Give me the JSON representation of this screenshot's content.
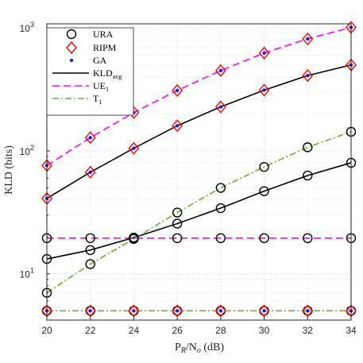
{
  "chart_data": {
    "type": "line",
    "xlabel": "P R/N o (dB)",
    "xlabel_parts": {
      "p": "P",
      "r": "R",
      "slash": "/N",
      "o": "o",
      "unit": " (dB)"
    },
    "ylabel": "KLD (bits)",
    "xlim": [
      20,
      34
    ],
    "ylim": [
      4.2,
      1080
    ],
    "yscale": "log",
    "grid": true,
    "legend_position": "top-left",
    "x_ticks": [
      "20",
      "22",
      "24",
      "26",
      "28",
      "30",
      "32",
      "34"
    ],
    "y_ticks": [
      {
        "base": "10",
        "exp": "1",
        "value": 10
      },
      {
        "base": "10",
        "exp": "2",
        "value": 100
      },
      {
        "base": "10",
        "exp": "3",
        "value": 1000
      }
    ],
    "x": [
      20,
      22,
      24,
      26,
      28,
      30,
      32,
      34
    ],
    "series": [
      {
        "name": "URA",
        "marker": "circle",
        "color": "#000000",
        "groups": [
          [
            13.2,
            15.6,
            19.7,
            25.6,
            34.2,
            47.0,
            63.0,
            80.0
          ],
          [
            7.0,
            12.0,
            19.2,
            31.5,
            50.0,
            74.0,
            107.0,
            143.0
          ],
          [
            19.5,
            19.5,
            19.5,
            19.5,
            19.5,
            19.5,
            19.5,
            19.5
          ],
          [
            5.0,
            5.0,
            5.0,
            5.0,
            5.0,
            5.0,
            5.0,
            5.0
          ]
        ]
      },
      {
        "name": "RIPM",
        "marker": "diamond",
        "color": "#ff0000",
        "groups": [
          [
            41.0,
            67.0,
            105.0,
            160.0,
            228.0,
            312.0,
            410.0,
            500.0
          ],
          [
            76.0,
            128.0,
            205.0,
            310.0,
            450.0,
            625.0,
            815.0,
            1010.0
          ],
          [
            5.0,
            5.0,
            5.0,
            5.0,
            5.0,
            5.0,
            5.0,
            5.0
          ]
        ]
      },
      {
        "name": "GA",
        "marker": "dot",
        "color": "#1f1fd6",
        "groups": [
          [
            41.0,
            67.0,
            105.0,
            160.0,
            228.0,
            312.0,
            410.0,
            500.0
          ],
          [
            76.0,
            128.0,
            205.0,
            310.0,
            450.0,
            625.0,
            815.0,
            1010.0
          ],
          [
            5.0,
            5.0,
            5.0,
            5.0,
            5.0,
            5.0,
            5.0,
            5.0
          ]
        ]
      },
      {
        "name": "KLD",
        "name_sub": "avg",
        "line": "solid",
        "color": "#000000",
        "groups": [
          [
            41.0,
            67.0,
            105.0,
            160.0,
            228.0,
            312.0,
            410.0,
            500.0
          ],
          [
            13.2,
            15.6,
            19.7,
            25.6,
            34.2,
            47.0,
            63.0,
            80.0
          ]
        ]
      },
      {
        "name": "UE",
        "name_sub": "1",
        "line": "dashed",
        "color": "#ff00ff",
        "groups": [
          [
            76.0,
            128.0,
            205.0,
            310.0,
            450.0,
            625.0,
            815.0,
            1010.0
          ],
          [
            19.5,
            19.5,
            19.5,
            19.5,
            19.5,
            19.5,
            19.5,
            19.5
          ]
        ]
      },
      {
        "name": "T",
        "name_sub": "1",
        "line": "dashdot",
        "color": "#77ac30",
        "groups": [
          [
            7.0,
            12.0,
            19.2,
            31.5,
            50.0,
            74.0,
            107.0,
            143.0
          ],
          [
            5.0,
            5.0,
            5.0,
            5.0,
            5.0,
            5.0,
            5.0,
            5.0
          ]
        ]
      }
    ]
  }
}
